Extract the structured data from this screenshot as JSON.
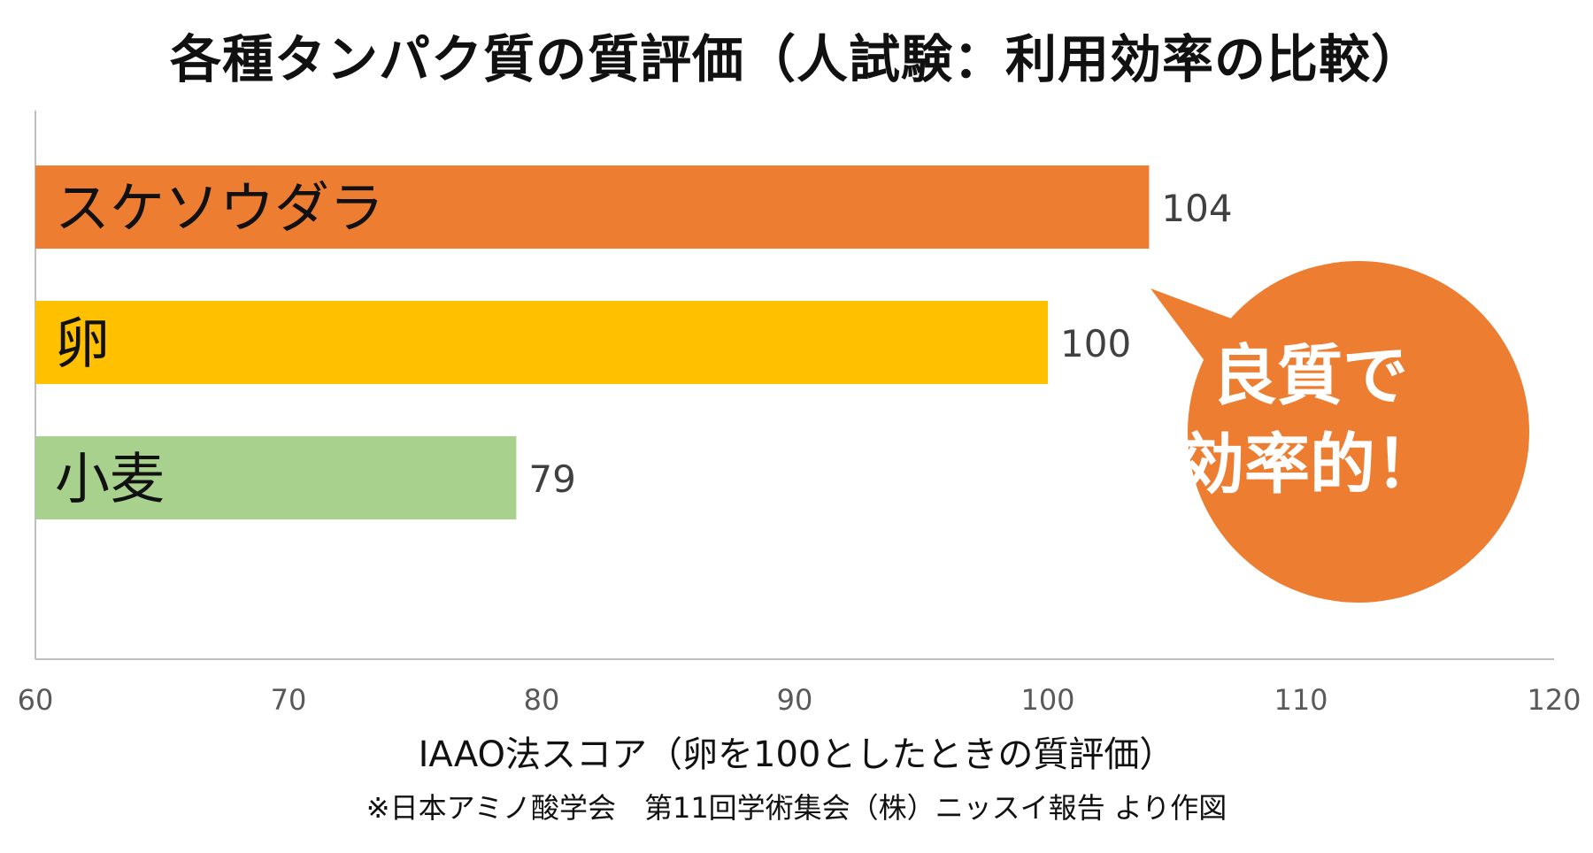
{
  "chart_data": {
    "type": "bar",
    "orientation": "horizontal",
    "title": "各種タンパク質の質評価（人試験：利用効率の比較）",
    "xlabel": "IAAO法スコア（卵を100としたときの質評価）",
    "xlim": [
      60,
      120
    ],
    "xticks": [
      "60",
      "70",
      "80",
      "90",
      "100",
      "110",
      "120"
    ],
    "grid": false,
    "categories": [
      "スケソウダラ",
      "卵",
      "小麦"
    ],
    "values": [
      104,
      100,
      79
    ],
    "data_labels": [
      "104",
      "100",
      "79"
    ],
    "colors": [
      "#ED7D31",
      "#FFC000",
      "#A9D18E"
    ],
    "source_note": "※日本アミノ酸学会　第11回学術集会（株）ニッスイ報告 より作図",
    "callout": {
      "text": "良質で\n効率的！",
      "color": "#ED7D31"
    }
  }
}
